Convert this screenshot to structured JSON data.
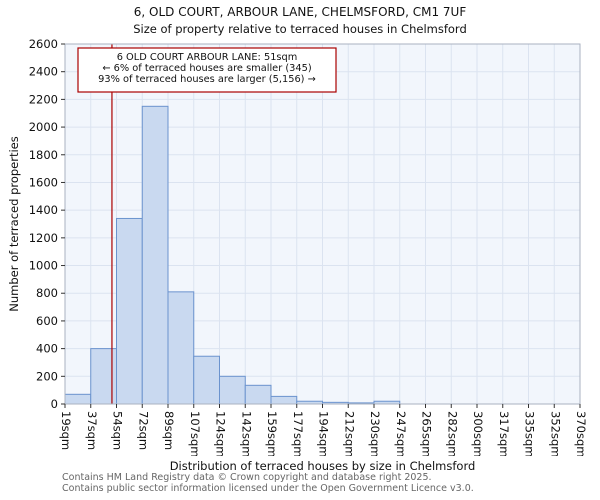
{
  "title": "6, OLD COURT, ARBOUR LANE, CHELMSFORD, CM1 7UF",
  "subtitle": "Size of property relative to terraced houses in Chelmsford",
  "footer": {
    "line1": "Contains HM Land Registry data © Crown copyright and database right 2025.",
    "line2": "Contains public sector information licensed under the Open Government Licence v3.0."
  },
  "chart_data": {
    "type": "bar",
    "title": "6, OLD COURT, ARBOUR LANE, CHELMSFORD, CM1 7UF",
    "subtitle": "Size of property relative to terraced houses in Chelmsford",
    "xlabel": "Distribution of terraced houses by size in Chelmsford",
    "ylabel": "Number of terraced properties",
    "x_tick_labels": [
      "19sqm",
      "37sqm",
      "54sqm",
      "72sqm",
      "89sqm",
      "107sqm",
      "124sqm",
      "142sqm",
      "159sqm",
      "177sqm",
      "194sqm",
      "212sqm",
      "230sqm",
      "247sqm",
      "265sqm",
      "282sqm",
      "300sqm",
      "317sqm",
      "335sqm",
      "352sqm",
      "370sqm"
    ],
    "bin_start": 19,
    "bin_end": 370,
    "values": [
      70,
      400,
      1340,
      2150,
      810,
      345,
      200,
      135,
      55,
      20,
      12,
      8,
      20,
      0,
      0,
      0,
      0,
      0,
      0,
      0
    ],
    "ylim": [
      0,
      2600
    ],
    "y_tick_step": 200,
    "grid": true,
    "legend": "none",
    "marker": {
      "value": 51,
      "label": "51sqm",
      "color": "#aa0000"
    },
    "annotation": {
      "lines": [
        "6 OLD COURT ARBOUR LANE: 51sqm",
        "← 6% of terraced houses are smaller (345)",
        "93% of terraced houses are larger (5,156) →"
      ],
      "border_color": "#aa0000"
    },
    "bar_fill": "#c9d9f0",
    "bar_stroke": "#6b93ce",
    "grid_color": "#dbe3f0",
    "plot_bg": "#f2f6fc",
    "axis_color": "#aab2c0"
  }
}
